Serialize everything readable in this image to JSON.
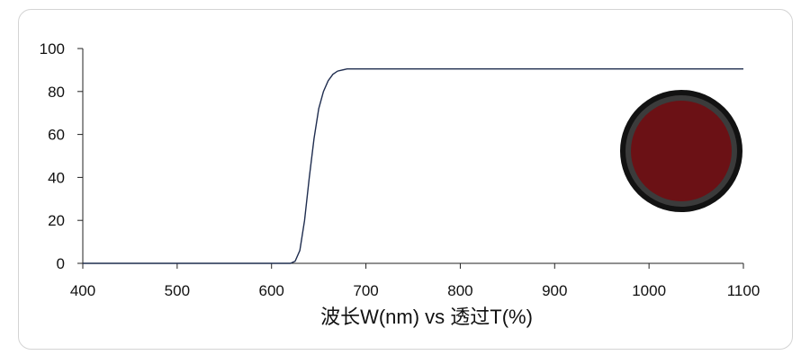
{
  "chart_data": {
    "type": "line",
    "xlabel": "波长W(nm) vs 透过T(%)",
    "x": [
      400,
      620,
      625,
      630,
      635,
      640,
      645,
      650,
      655,
      660,
      665,
      670,
      680,
      1100
    ],
    "values": [
      0,
      0,
      1,
      6,
      20,
      40,
      58,
      72,
      80,
      85,
      88,
      89.5,
      90.5,
      90.5
    ],
    "color": "#1f2d4f",
    "xlim": [
      400,
      1100
    ],
    "xticks": [
      400,
      500,
      600,
      700,
      800,
      900,
      1000,
      1100
    ],
    "ylim": [
      0,
      100
    ],
    "yticks": [
      0,
      20,
      40,
      60,
      80,
      100
    ]
  }
}
